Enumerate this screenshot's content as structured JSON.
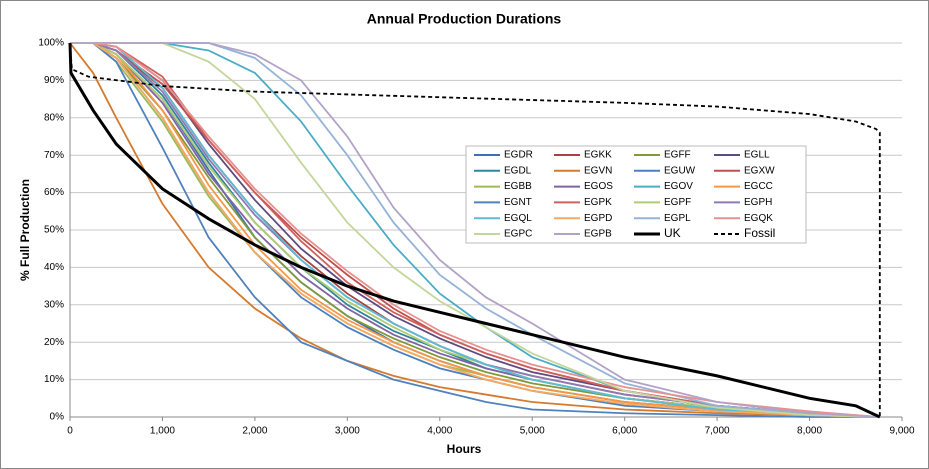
{
  "chart_data": {
    "type": "line",
    "title": "Annual Production Durations",
    "x_label": "Hours",
    "y_label": "% Full Production",
    "xlim": [
      0,
      9000
    ],
    "ylim": [
      0,
      100
    ],
    "grid": true,
    "legend": "center-right",
    "xticks": [
      0,
      {
        "value": 1000,
        "label": "1,000"
      },
      {
        "value": 2000,
        "label": "2,000"
      },
      {
        "value": 3000,
        "label": "3,000"
      },
      {
        "value": 4000,
        "label": "4,000"
      },
      {
        "value": 5000,
        "label": "5,000"
      },
      {
        "value": 6000,
        "label": "6,000"
      },
      {
        "value": 7000,
        "label": "7,000"
      },
      {
        "value": 8000,
        "label": "8,000"
      },
      {
        "value": 9000,
        "label": "9,000"
      }
    ],
    "yticks": [
      {
        "value": 0,
        "label": "0%"
      },
      {
        "value": 10,
        "label": "10%"
      },
      {
        "value": 20,
        "label": "20%"
      },
      {
        "value": 30,
        "label": "30%"
      },
      {
        "value": 40,
        "label": "40%"
      },
      {
        "value": 50,
        "label": "50%"
      },
      {
        "value": 60,
        "label": "60%"
      },
      {
        "value": 70,
        "label": "70%"
      },
      {
        "value": 80,
        "label": "80%"
      },
      {
        "value": 90,
        "label": "90%"
      },
      {
        "value": 100,
        "label": "100%"
      }
    ],
    "x": [
      0,
      250,
      500,
      1000,
      1500,
      2000,
      2500,
      3000,
      3500,
      4000,
      4500,
      5000,
      6000,
      7000,
      8000,
      8760
    ],
    "series": [
      {
        "name": "EGDR",
        "color": "#3F6FAF",
        "values": [
          100,
          100,
          97,
          85,
          66,
          48,
          36,
          27,
          20,
          15,
          11,
          8,
          4,
          2,
          1,
          0
        ]
      },
      {
        "name": "EGKK",
        "color": "#A8423F",
        "values": [
          100,
          100,
          98,
          88,
          70,
          55,
          43,
          33,
          25,
          19,
          14,
          11,
          6,
          3,
          1,
          0
        ]
      },
      {
        "name": "EGFF",
        "color": "#7E9A3A",
        "values": [
          100,
          100,
          96,
          82,
          64,
          48,
          36,
          27,
          21,
          16,
          12,
          9,
          5,
          2.5,
          1,
          0
        ]
      },
      {
        "name": "EGLL",
        "color": "#5F4A7E",
        "values": [
          100,
          100,
          99,
          90,
          73,
          58,
          45,
          35,
          27,
          21,
          16,
          12,
          7,
          3,
          1,
          0
        ]
      },
      {
        "name": "EGDL",
        "color": "#31859B",
        "values": [
          100,
          100,
          98,
          86,
          68,
          52,
          40,
          30,
          23,
          18,
          13,
          10,
          5,
          2.5,
          1,
          0
        ]
      },
      {
        "name": "EGVN",
        "color": "#D57A2E",
        "values": [
          100,
          92,
          80,
          57,
          40,
          29,
          21,
          15,
          11,
          8,
          6,
          4,
          2,
          1,
          0.5,
          0
        ]
      },
      {
        "name": "EGUW",
        "color": "#4A7FC0",
        "values": [
          100,
          100,
          96,
          80,
          60,
          44,
          32,
          24,
          18,
          13,
          10,
          7,
          3,
          1.5,
          0.5,
          0
        ]
      },
      {
        "name": "EGXW",
        "color": "#C0504D",
        "values": [
          100,
          100,
          98,
          89,
          74,
          60,
          48,
          38,
          29,
          22,
          17,
          13,
          7,
          3,
          1,
          0
        ]
      },
      {
        "name": "EGBB",
        "color": "#9BBB59",
        "values": [
          100,
          100,
          95,
          79,
          59,
          44,
          33,
          25,
          19,
          14,
          11,
          8,
          4,
          2,
          0.5,
          0
        ]
      },
      {
        "name": "EGOS",
        "color": "#8064A2",
        "values": [
          100,
          100,
          97,
          84,
          65,
          50,
          38,
          29,
          22,
          17,
          13,
          10,
          5,
          2.5,
          1,
          0
        ]
      },
      {
        "name": "EGOV",
        "color": "#4BACC6",
        "values": [
          100,
          100,
          100,
          100,
          98,
          92,
          79,
          62,
          46,
          33,
          24,
          16,
          7,
          2.5,
          1,
          0
        ]
      },
      {
        "name": "EGCC",
        "color": "#F79646",
        "values": [
          100,
          100,
          97,
          82,
          62,
          46,
          34,
          26,
          20,
          15,
          11,
          8,
          4,
          2,
          0.5,
          0
        ]
      },
      {
        "name": "EGNT",
        "color": "#4F81BD",
        "values": [
          100,
          100,
          95,
          72,
          48,
          32,
          20,
          15,
          10,
          7,
          4,
          2,
          1,
          0.5,
          0,
          0
        ]
      },
      {
        "name": "EGPK",
        "color": "#D0605C",
        "values": [
          100,
          100,
          99,
          91,
          74,
          60,
          47,
          36,
          28,
          22,
          17,
          13,
          7,
          3,
          1,
          0
        ]
      },
      {
        "name": "EGPF",
        "color": "#B0CC70",
        "values": [
          100,
          100,
          97,
          85,
          67,
          52,
          40,
          31,
          24,
          18,
          14,
          10,
          5,
          2.5,
          1,
          0
        ]
      },
      {
        "name": "EGPH",
        "color": "#9279B5",
        "values": [
          100,
          100,
          98,
          87,
          69,
          54,
          42,
          32,
          25,
          19,
          14,
          11,
          6,
          3,
          1,
          0
        ]
      },
      {
        "name": "EGQL",
        "color": "#5BBCD6",
        "values": [
          100,
          100,
          99,
          88,
          70,
          55,
          42,
          32,
          25,
          19,
          14,
          10,
          5,
          2,
          0.5,
          0
        ]
      },
      {
        "name": "EGPD",
        "color": "#F9A85E",
        "values": [
          100,
          100,
          96,
          80,
          60,
          44,
          33,
          25,
          19,
          14,
          10,
          7,
          3.5,
          1.5,
          0.5,
          0
        ]
      },
      {
        "name": "EGPL",
        "color": "#95B3D7",
        "values": [
          100,
          100,
          100,
          100,
          100,
          96,
          86,
          70,
          52,
          38,
          29,
          22,
          9,
          3,
          1,
          0
        ]
      },
      {
        "name": "EGQK",
        "color": "#E6918F",
        "values": [
          100,
          100,
          99,
          90,
          75,
          61,
          49,
          39,
          30,
          23,
          18,
          14,
          8,
          4,
          1.5,
          0
        ]
      },
      {
        "name": "EGPC",
        "color": "#C3D69B",
        "values": [
          100,
          100,
          100,
          100,
          95,
          85,
          68,
          52,
          40,
          31,
          24,
          17,
          7,
          2.5,
          0.5,
          0
        ]
      },
      {
        "name": "EGPB",
        "color": "#B3A2C7",
        "values": [
          100,
          100,
          100,
          100,
          100,
          97,
          90,
          75,
          56,
          42,
          32,
          25,
          10,
          4,
          1,
          0
        ]
      },
      {
        "name": "UK",
        "color": "#000000",
        "width": 3,
        "x": [
          0,
          10,
          250,
          500,
          1000,
          1500,
          2000,
          2500,
          3000,
          3500,
          4000,
          4500,
          5000,
          6000,
          7000,
          8000,
          8500,
          8760
        ],
        "values": [
          100,
          92,
          82,
          73,
          61,
          53,
          46,
          40,
          35,
          31,
          28,
          25,
          22,
          16,
          11,
          5,
          3,
          0
        ]
      },
      {
        "name": "Fossil",
        "color": "#000000",
        "dash": true,
        "x": [
          0,
          20,
          200,
          1000,
          2000,
          4000,
          6000,
          7000,
          8000,
          8500,
          8720,
          8760,
          8760
        ],
        "values": [
          100,
          93,
          91,
          88.5,
          87,
          85.5,
          84,
          83,
          81,
          79,
          77,
          76,
          0
        ]
      }
    ]
  }
}
